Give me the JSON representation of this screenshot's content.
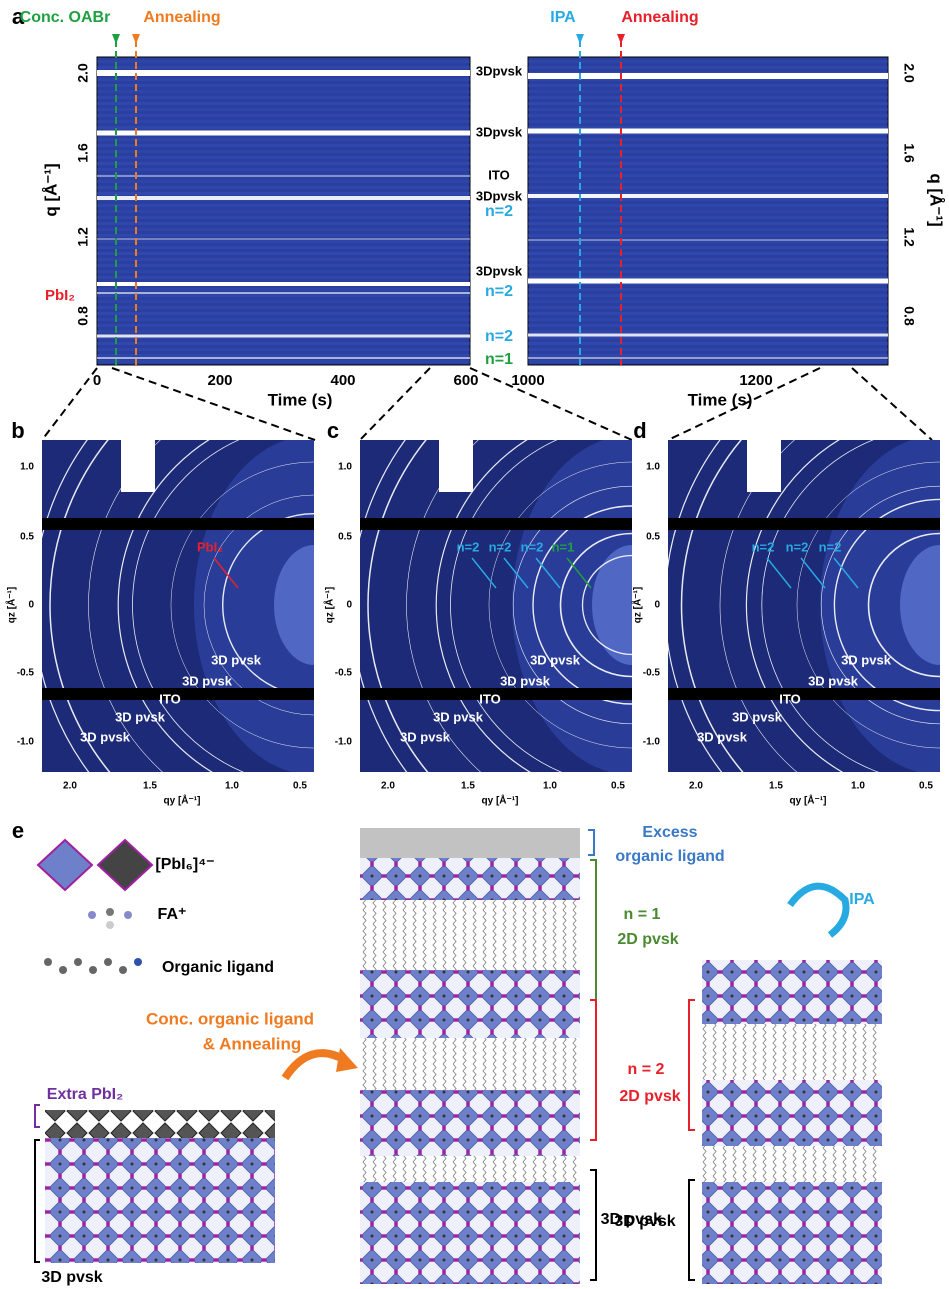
{
  "panel_labels": [
    "a",
    "b",
    "c",
    "d",
    "e"
  ],
  "panel_a": {
    "events": [
      "Conc. OABr",
      "Annealing",
      "IPA",
      "Annealing"
    ],
    "y_axis_label": "q [Å⁻¹]",
    "y_ticks": [
      "2.0",
      "1.6",
      "1.2",
      "0.8"
    ],
    "x_axis_label": "Time (s)",
    "left_x_ticks": [
      "0",
      "200",
      "400",
      "600"
    ],
    "right_x_ticks": [
      "1000",
      "1200"
    ],
    "peak_labels": [
      "3Dpvsk",
      "3Dpvsk",
      "ITO",
      "3Dpvsk",
      "n=2",
      "3Dpvsk",
      "n=2",
      "n=2",
      "n=1"
    ],
    "pbi2_label": "PbI₂"
  },
  "panels_bcd": {
    "y_ticks": [
      "1.0",
      "0.5",
      "0",
      "-0.5",
      "-1.0"
    ],
    "x_ticks": [
      "2.0",
      "1.5",
      "1.0",
      "0.5"
    ],
    "y_axis_label": "qz [Å⁻¹]",
    "x_axis_label": "qy [Å⁻¹]",
    "b": [
      "PbI₂",
      "3D pvsk",
      "3D pvsk",
      "ITO",
      "3D pvsk",
      "3D pvsk"
    ],
    "c": [
      "n=2",
      "n=2",
      "n=2",
      "n=1",
      "3D pvsk",
      "3D pvsk",
      "ITO",
      "3D pvsk",
      "3D pvsk"
    ],
    "d": [
      "n=2",
      "n=2",
      "n=2",
      "3D pvsk",
      "3D pvsk",
      "ITO",
      "3D pvsk",
      "3D pvsk"
    ]
  },
  "panel_e": {
    "legend": [
      "[PbI₆]⁴⁻",
      "FA⁺",
      "Organic ligand"
    ],
    "step1": [
      "Conc. organic ligand",
      "& Annealing"
    ],
    "extra": "Extra PbI₂",
    "left_base": "3D pvsk",
    "excess": [
      "Excess",
      "organic ligand"
    ],
    "n1": [
      "n = 1",
      "2D pvsk"
    ],
    "n2": [
      "n = 2",
      "2D pvsk"
    ],
    "middle_base": "3D pvsk",
    "step2": "IPA",
    "right_base": "3D pvsk"
  }
}
